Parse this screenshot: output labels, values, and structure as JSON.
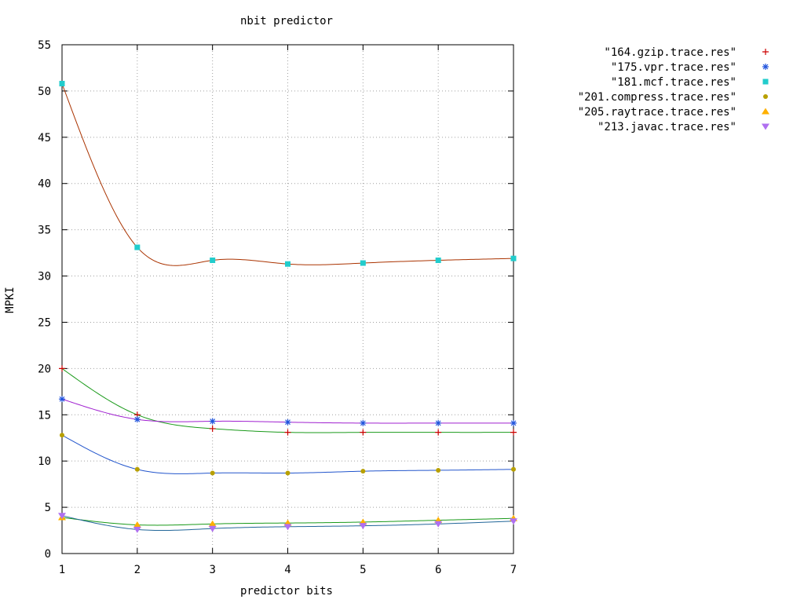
{
  "chart_data": {
    "type": "line",
    "title": "nbit predictor",
    "xlabel": "predictor bits",
    "ylabel": "MPKI",
    "xlim": [
      1,
      7
    ],
    "ylim": [
      0,
      55
    ],
    "x_ticks": [
      1,
      2,
      3,
      4,
      5,
      6,
      7
    ],
    "y_ticks": [
      0,
      5,
      10,
      15,
      20,
      25,
      30,
      35,
      40,
      45,
      50,
      55
    ],
    "grid": true,
    "legend_position": "top-right",
    "x": [
      1,
      2,
      3,
      4,
      5,
      6,
      7
    ],
    "series": [
      {
        "name": "\"164.gzip.trace.res\"",
        "marker": "plus",
        "marker_color": "#cc0000",
        "curve_color": "#1a9a1a",
        "values": [
          20.0,
          15.0,
          13.5,
          13.1,
          13.1,
          13.1,
          13.1
        ]
      },
      {
        "name": "\"175.vpr.trace.res\"",
        "marker": "asterisk",
        "marker_color": "#2255dd",
        "curve_color": "#a020d0",
        "values": [
          16.7,
          14.5,
          14.3,
          14.2,
          14.1,
          14.1,
          14.1
        ]
      },
      {
        "name": "\"181.mcf.trace.res\"",
        "marker": "square",
        "marker_color": "#22cccc",
        "curve_color": "#aa3300",
        "values": [
          50.8,
          33.1,
          31.7,
          31.3,
          31.4,
          31.7,
          31.9
        ]
      },
      {
        "name": "\"201.compress.trace.res\"",
        "marker": "circle",
        "marker_color": "#b8a000",
        "curve_color": "#2255cc",
        "values": [
          12.8,
          9.1,
          8.7,
          8.7,
          8.9,
          9.0,
          9.1
        ]
      },
      {
        "name": "\"205.raytrace.trace.res\"",
        "marker": "triangle-up",
        "marker_color": "#ffb000",
        "curve_color": "#1a9a1a",
        "values": [
          3.9,
          3.1,
          3.2,
          3.3,
          3.4,
          3.6,
          3.8
        ]
      },
      {
        "name": "\"213.javac.trace.res\"",
        "marker": "triangle-down",
        "marker_color": "#b070f0",
        "curve_color": "#226699",
        "values": [
          4.1,
          2.6,
          2.7,
          2.9,
          3.0,
          3.2,
          3.5
        ]
      }
    ]
  }
}
